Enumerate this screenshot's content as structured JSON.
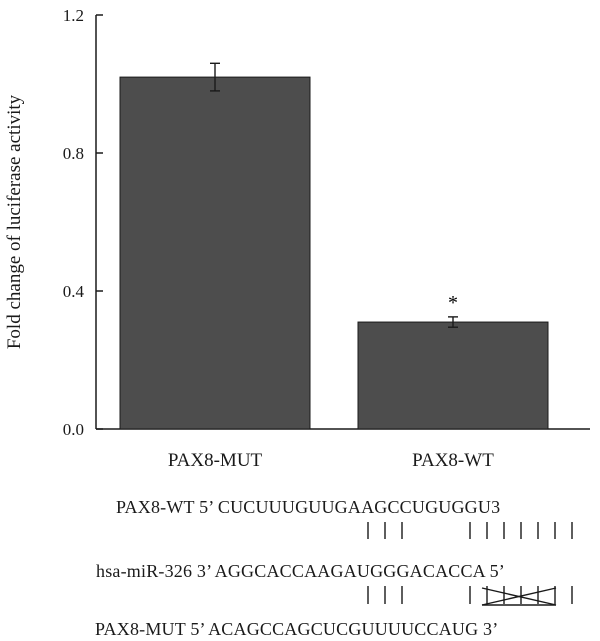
{
  "chart_data": {
    "type": "bar",
    "categories": [
      "PAX8-MUT",
      "PAX8-WT"
    ],
    "values": [
      1.02,
      0.31
    ],
    "errors": [
      0.04,
      0.015
    ],
    "annotations": [
      "",
      "*"
    ],
    "ylabel": "Fold change of luciferase activity",
    "ylim": [
      0.0,
      1.2
    ],
    "yticks": [
      "0.0",
      "0.4",
      "0.8",
      "1.2"
    ],
    "bar_color": "#4d4d4d"
  },
  "sequences": {
    "wt": "PAX8-WT 5’ CUCUUUGUUGAAGCCUGUGGU3",
    "mirna": "hsa-miR-326 3’ AGGCACCAAGAUGGGACACCA 5’",
    "mut": "PAX8-MUT 5’ ACAGCCAGCUCGUUUUCCAUG 3’"
  }
}
